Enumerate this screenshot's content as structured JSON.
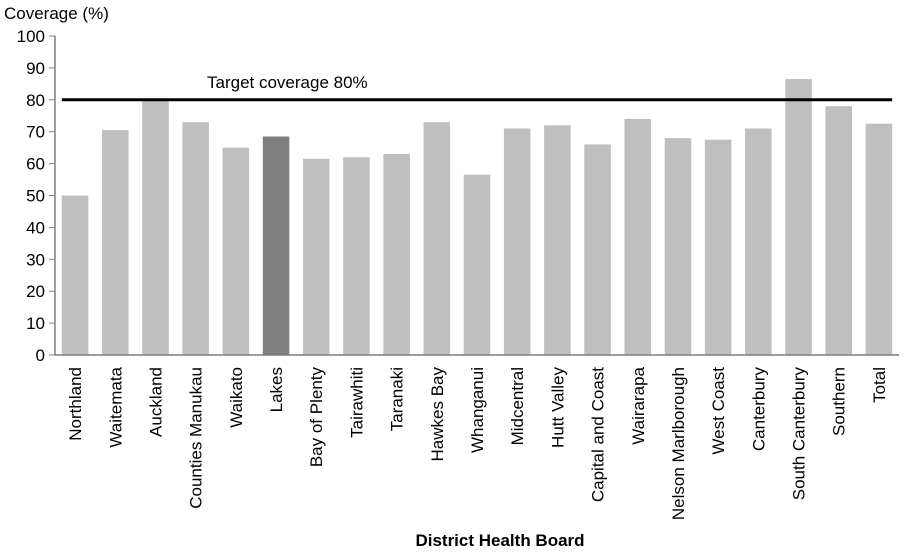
{
  "chart_data": {
    "type": "bar",
    "ylabel": "Coverage (%)",
    "xlabel": "District Health Board",
    "ylim": [
      0,
      100
    ],
    "yticks": [
      0,
      10,
      20,
      30,
      40,
      50,
      60,
      70,
      80,
      90,
      100
    ],
    "grid": false,
    "categories": [
      "Northland",
      "Waitemata",
      "Auckland",
      "Counties Manukau",
      "Waikato",
      "Lakes",
      "Bay of Plenty",
      "Tairawhiti",
      "Taranaki",
      "Hawkes Bay",
      "Whanganui",
      "Midcentral",
      "Hutt Valley",
      "Capital and Coast",
      "Wairarapa",
      "Nelson Marlborough",
      "West Coast",
      "Canterbury",
      "South Canterbury",
      "Southern",
      "Total"
    ],
    "values": [
      50,
      70.5,
      80,
      73,
      65,
      68.5,
      61.5,
      62,
      63,
      73,
      56.5,
      71,
      72,
      66,
      74,
      68,
      67.5,
      71,
      86.5,
      78,
      72.5
    ],
    "highlight_category": "Lakes",
    "colors": {
      "bar": "#bfbfbf",
      "highlight": "#808080",
      "target_line": "#000000",
      "axis": "#7f7f7f"
    },
    "target": {
      "value": 80,
      "label": "Target coverage 80%"
    }
  }
}
